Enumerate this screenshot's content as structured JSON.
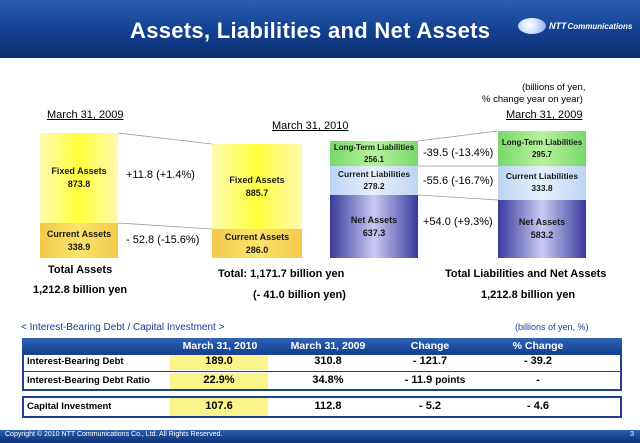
{
  "header": {
    "title": "Assets, Liabilities and Net Assets",
    "logo_text": "NTT",
    "logo_sub": "Communications"
  },
  "unit_note": [
    "(billions of yen,",
    "% change year on year)"
  ],
  "chart_data": {
    "type": "bar",
    "dates": {
      "left": "March 31, 2009",
      "middle": "March 31, 2010",
      "right": "March 31, 2009"
    },
    "assets_2009": [
      {
        "name": "Fixed Assets",
        "value": "873.8"
      },
      {
        "name": "Current Assets",
        "value": "338.9"
      }
    ],
    "assets_2010": [
      {
        "name": "Fixed Assets",
        "value": "885.7"
      },
      {
        "name": "Current Assets",
        "value": "286.0"
      }
    ],
    "liabilities_2010": [
      {
        "name": "Long-Term Liabilities",
        "value": "256.1"
      },
      {
        "name": "Current Liabilities",
        "value": "278.2"
      },
      {
        "name": "Net Assets",
        "value": "637.3"
      }
    ],
    "liabilities_2009": [
      {
        "name": "Long-Term Liabilities",
        "value": "295.7"
      },
      {
        "name": "Current Liabilities",
        "value": "333.8"
      },
      {
        "name": "Net Assets",
        "value": "583.2"
      }
    ],
    "changes": {
      "fixed_assets": "+11.8 (+1.4%)",
      "current_assets": "- 52.8 (-15.6%)",
      "long_term_liabilities": "-39.5 (-13.4%)",
      "current_liabilities": "-55.6 (-16.7%)",
      "net_assets": "+54.0 (+9.3%)"
    },
    "totals": {
      "total_assets_label": "Total Assets",
      "total_assets_value": "1,212.8 billion yen",
      "total_2010_label": "Total: 1,171.7 billion yen",
      "total_2010_change": "(- 41.0 billion yen)",
      "total_liab_label": "Total Liabilities and Net Assets",
      "total_liab_value": "1,212.8 billion yen"
    }
  },
  "table": {
    "title": "< Interest-Bearing Debt / Capital Investment >",
    "unit": "(billions of yen, %)",
    "headers": [
      "March 31, 2010",
      "March 31, 2009",
      "Change",
      "% Change"
    ],
    "rows": [
      {
        "label": "Interest-Bearing Debt",
        "v2010": "189.0",
        "v2009": "310.8",
        "change": "- 121.7",
        "pct": "- 39.2"
      },
      {
        "label": "Interest-Bearing Debt Ratio",
        "v2010": "22.9%",
        "v2009": "34.8%",
        "change": "- 11.9",
        "change_suffix": "points",
        "pct": "-"
      },
      {
        "label": "Capital Investment",
        "v2010": "107.6",
        "v2009": "112.8",
        "change": "- 5.2",
        "pct": "- 4.6"
      }
    ]
  },
  "footer": {
    "copyright": "Copyright © 2010 NTT Communications Co., Ltd. All Rights Reserved.",
    "page": "3"
  }
}
